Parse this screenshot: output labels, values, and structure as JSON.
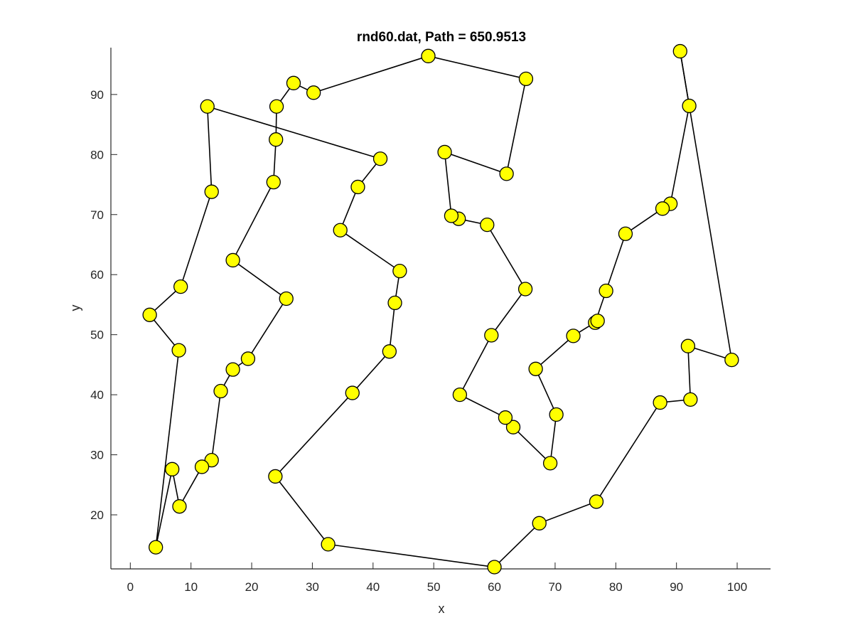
{
  "chart_data": {
    "type": "line",
    "title": "rnd60.dat, Path = 650.9513",
    "xlabel": "x",
    "ylabel": "y",
    "xlim": [
      -3.2,
      105.5
    ],
    "ylim": [
      11.0,
      97.8
    ],
    "xticks": [
      0,
      10,
      20,
      30,
      40,
      50,
      60,
      70,
      80,
      90,
      100
    ],
    "yticks": [
      20,
      30,
      40,
      50,
      60,
      70,
      80,
      90
    ],
    "grid": false,
    "legend": "none",
    "marker_color": "#ffff00",
    "line_color": "#000000",
    "series": [
      {
        "closed": true,
        "points": [
          [
            4.2,
            14.6
          ],
          [
            8.0,
            47.4
          ],
          [
            3.2,
            53.3
          ],
          [
            8.3,
            58.0
          ],
          [
            13.4,
            73.8
          ],
          [
            12.7,
            88.0
          ],
          [
            41.2,
            79.3
          ],
          [
            37.5,
            74.6
          ],
          [
            34.6,
            67.4
          ],
          [
            44.4,
            60.6
          ],
          [
            43.6,
            55.3
          ],
          [
            42.7,
            47.2
          ],
          [
            36.6,
            40.3
          ],
          [
            23.9,
            26.4
          ],
          [
            32.6,
            15.1
          ],
          [
            60.0,
            11.3
          ],
          [
            67.4,
            18.6
          ],
          [
            76.8,
            22.2
          ],
          [
            87.3,
            38.7
          ],
          [
            92.3,
            39.2
          ],
          [
            91.9,
            48.1
          ],
          [
            99.1,
            45.8
          ],
          [
            90.6,
            97.2
          ],
          [
            92.1,
            88.1
          ],
          [
            89.0,
            71.8
          ],
          [
            87.7,
            71.0
          ],
          [
            81.6,
            66.8
          ],
          [
            78.4,
            57.3
          ],
          [
            76.6,
            52.0
          ],
          [
            77.0,
            52.3
          ],
          [
            73.0,
            49.8
          ],
          [
            66.8,
            44.3
          ],
          [
            70.2,
            36.7
          ],
          [
            69.2,
            28.6
          ],
          [
            63.1,
            34.6
          ],
          [
            61.8,
            36.2
          ],
          [
            54.3,
            40.0
          ],
          [
            59.5,
            49.9
          ],
          [
            65.1,
            57.6
          ],
          [
            58.8,
            68.3
          ],
          [
            54.1,
            69.3
          ],
          [
            52.9,
            69.8
          ],
          [
            51.8,
            80.4
          ],
          [
            62.0,
            76.8
          ],
          [
            65.2,
            92.6
          ],
          [
            49.1,
            96.4
          ],
          [
            30.2,
            90.3
          ],
          [
            26.9,
            91.9
          ],
          [
            24.1,
            88.0
          ],
          [
            24.0,
            82.5
          ],
          [
            23.6,
            75.4
          ],
          [
            16.9,
            62.4
          ],
          [
            25.7,
            56.0
          ],
          [
            19.4,
            46.0
          ],
          [
            16.9,
            44.2
          ],
          [
            14.9,
            40.6
          ],
          [
            13.4,
            29.1
          ],
          [
            11.8,
            28.0
          ],
          [
            8.1,
            21.4
          ],
          [
            6.9,
            27.6
          ]
        ]
      }
    ]
  }
}
